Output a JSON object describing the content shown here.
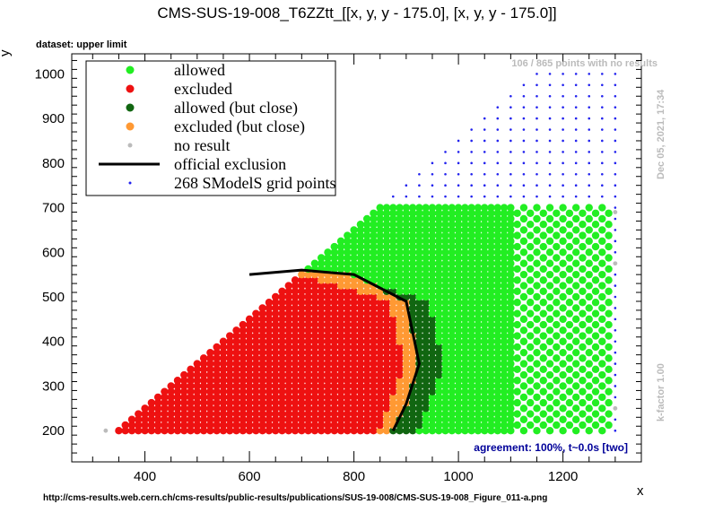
{
  "chart_data": {
    "type": "scatter",
    "title": "CMS-SUS-19-008_T6ZZtt_[[x, y, y - 175.0], [x, y, y - 175.0]]",
    "subtitle": "dataset: upper limit",
    "xlabel": "x",
    "ylabel": "y",
    "xlim": [
      260,
      1350
    ],
    "ylim": [
      130,
      1045
    ],
    "xticks": [
      400,
      600,
      800,
      1000,
      1200
    ],
    "yticks": [
      200,
      300,
      400,
      500,
      600,
      700,
      800,
      900,
      1000
    ],
    "grid": false,
    "legend_position": "top-left",
    "legend": [
      {
        "label": "allowed",
        "marker": "dot",
        "color": "#22ee22"
      },
      {
        "label": "excluded",
        "marker": "dot",
        "color": "#ee1111"
      },
      {
        "label": "allowed (but close)",
        "marker": "dot",
        "color": "#116611"
      },
      {
        "label": "excluded (but close)",
        "marker": "dot",
        "color": "#ff9933"
      },
      {
        "label": "no result",
        "marker": "small-dot",
        "color": "#bbbbbb"
      },
      {
        "label": "official exclusion",
        "marker": "line",
        "color": "#000000"
      },
      {
        "label": "268 SModelS grid points",
        "marker": "tiny-dot",
        "color": "#2222ee"
      }
    ],
    "official_exclusion": {
      "x": [
        600,
        700,
        800,
        900,
        925,
        900,
        875
      ],
      "y": [
        550,
        560,
        550,
        490,
        350,
        260,
        200
      ]
    },
    "grid_points_note": "SModelS grid points distributed on triangle 325<=x<=1300, 200<=y<=x-150",
    "annotations": {
      "points_no_results": "106 / 865 points with no results",
      "date": "Dec 05, 2021, 17:34",
      "kfactor": "k-factor 1.00",
      "agreement": "agreement: 100%, t~0.0s [two]",
      "url": "http://cms-results.web.cern.ch/cms-results/public-results/publications/SUS-19-008/CMS-SUS-19-008_Figure_011-a.png"
    },
    "colors": {
      "allowed": "#22ee22",
      "excluded": "#ee1111",
      "allowed_close": "#116611",
      "excluded_close": "#ff9933",
      "no_result": "#bbbbbb",
      "grid_point": "#2222ee",
      "agreement_text": "#000099",
      "side_text": "#bbbbbb"
    }
  }
}
